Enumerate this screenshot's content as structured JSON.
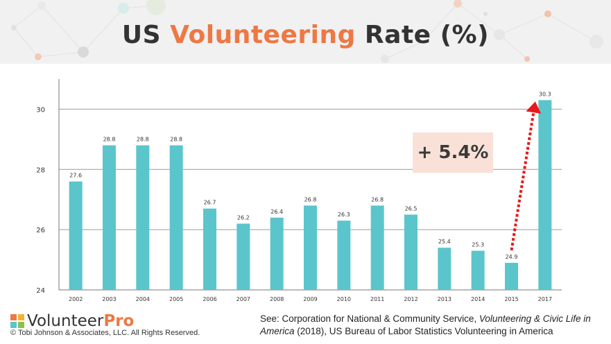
{
  "header": {
    "title_prefix": "US ",
    "title_accent": "Volunteering",
    "title_suffix": " Rate (%)"
  },
  "callout": {
    "text": "+ 5.4%"
  },
  "footer": {
    "logo_name": "Volunteer",
    "logo_pro": "Pro",
    "copyright": "© Tobi Johnson & Associates, LLC. All Rights Reserved.",
    "source_1": "See: Corporation for National & Community Service, ",
    "source_italic": "Volunteering & Civic Life in America",
    "source_2": " (2018), US Bureau of Labor Statistics Volunteering in America"
  },
  "colors": {
    "bar": "#5bc5cc",
    "arrow": "#e8191b",
    "accent": "#ee7844",
    "callout_bg": "#f9e1d8"
  },
  "chart_data": {
    "type": "bar",
    "categories": [
      "2002",
      "2003",
      "2004",
      "2005",
      "2006",
      "2007",
      "2008",
      "2009",
      "2010",
      "2011",
      "2012",
      "2013",
      "2014",
      "2015",
      "2017"
    ],
    "values": [
      27.6,
      28.8,
      28.8,
      28.8,
      26.7,
      26.2,
      26.4,
      26.8,
      26.3,
      26.8,
      26.5,
      25.4,
      25.3,
      24.9,
      30.3
    ],
    "value_labels": [
      "27.6",
      "28.8",
      "28.8",
      "28.8",
      "26.7",
      "26.2",
      "26.4",
      "26.8",
      "26.3",
      "26.8",
      "26.5",
      "25.4",
      "25.3",
      "24.9",
      "30.3"
    ],
    "ylim": [
      24,
      31
    ],
    "yticks": [
      24,
      26,
      28,
      30
    ],
    "grid": true,
    "annotation": {
      "text": "+ 5.4%",
      "from_category": "2015",
      "to_category": "2017"
    }
  }
}
